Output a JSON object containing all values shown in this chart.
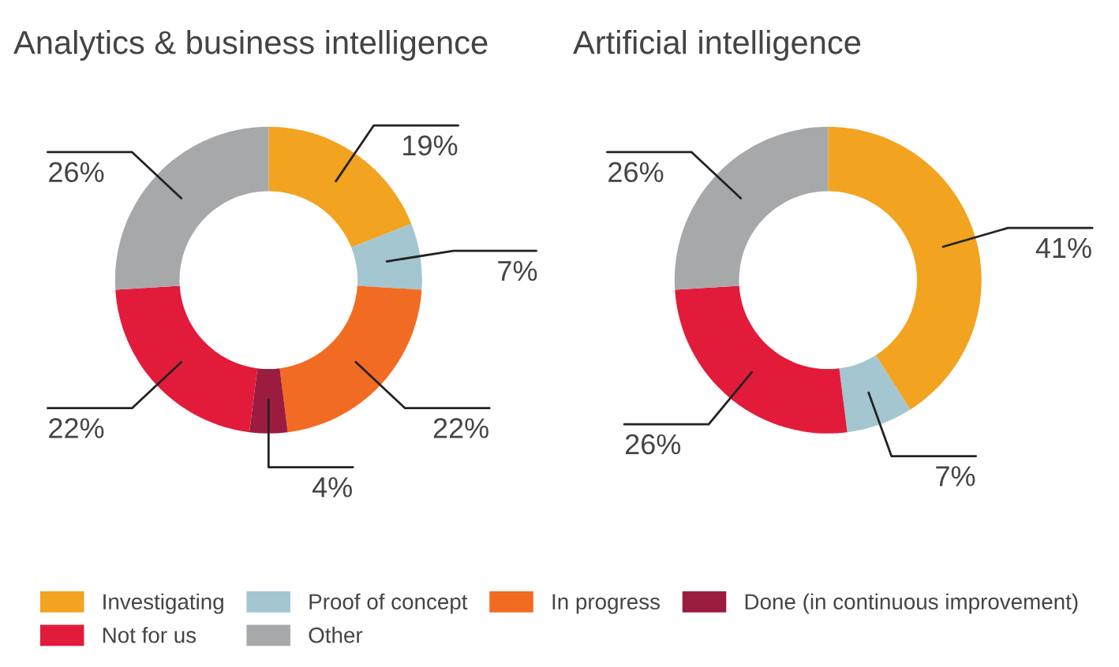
{
  "chart_data": [
    {
      "type": "donut",
      "title": "Analytics & business intelligence",
      "categories": [
        "Investigating",
        "Proof of concept",
        "In progress",
        "Done (in continuous improvement)",
        "Not for us",
        "Other"
      ],
      "values": [
        19,
        7,
        22,
        4,
        22,
        26
      ],
      "colors": [
        "#f2a31f",
        "#a3c6d1",
        "#f26b22",
        "#9c1c3f",
        "#e31b3b",
        "#a7a8aa"
      ],
      "value_labels": [
        "19%",
        "7%",
        "22%",
        "4%",
        "22%",
        "26%"
      ],
      "legend": "bottom"
    },
    {
      "type": "donut",
      "title": "Artificial intelligence",
      "categories": [
        null,
        null,
        null,
        null
      ],
      "values": [
        41,
        7,
        26,
        26
      ],
      "colors": [
        "#f2a31f",
        "#a3c6d1",
        "#e31b3b",
        "#a7a8aa"
      ],
      "value_labels": [
        "41%",
        "7%",
        "26%",
        "26%"
      ]
    }
  ]
}
